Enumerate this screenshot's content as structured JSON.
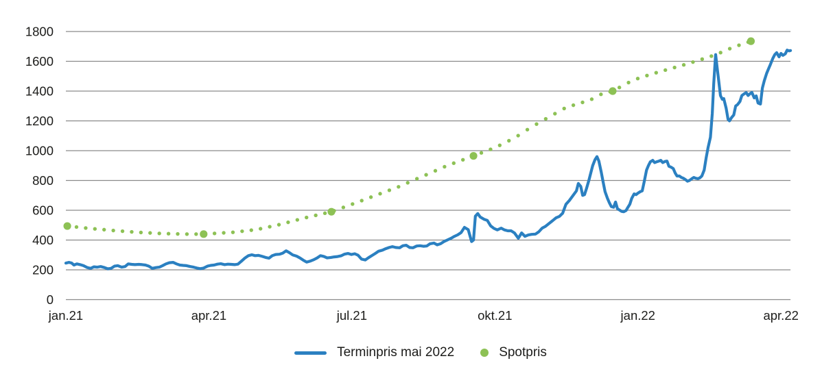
{
  "legend": {
    "terminpris": "Terminpris mai 2022",
    "spotpris": "Spotpris"
  },
  "colors": {
    "terminpris": "#2B80C1",
    "spotpris": "#8DC155",
    "grid": "#8A8A8A",
    "text": "#1C1C1A",
    "background": "#FFFFFF"
  },
  "chart_data": {
    "type": "line",
    "title": "",
    "xlabel": "",
    "ylabel": "",
    "x_axis": {
      "unit": "months_since_jan_2021",
      "tick_labels": [
        "jan.21",
        "apr.21",
        "jul.21",
        "okt.21",
        "jan.22",
        "apr.22"
      ],
      "tick_months": [
        0,
        3,
        6,
        9,
        12,
        15
      ],
      "range": [
        0,
        15.2
      ]
    },
    "y_axis": {
      "min": 0,
      "max": 1800,
      "tick_step": 200,
      "ticks": [
        0,
        200,
        400,
        600,
        800,
        1000,
        1200,
        1400,
        1600,
        1800
      ],
      "grid": true
    },
    "legend_position": "bottom-center",
    "series": [
      {
        "name": "Terminpris mai 2022",
        "style": "solid_line",
        "color": "#2B80C1",
        "points": [
          [
            0.0,
            245
          ],
          [
            0.06,
            250
          ],
          [
            0.12,
            246
          ],
          [
            0.17,
            232
          ],
          [
            0.23,
            240
          ],
          [
            0.3,
            235
          ],
          [
            0.37,
            228
          ],
          [
            0.45,
            215
          ],
          [
            0.52,
            210
          ],
          [
            0.59,
            220
          ],
          [
            0.66,
            218
          ],
          [
            0.73,
            222
          ],
          [
            0.81,
            215
          ],
          [
            0.88,
            207
          ],
          [
            0.95,
            210
          ],
          [
            1.02,
            225
          ],
          [
            1.09,
            228
          ],
          [
            1.17,
            218
          ],
          [
            1.24,
            222
          ],
          [
            1.31,
            240
          ],
          [
            1.38,
            237
          ],
          [
            1.45,
            235
          ],
          [
            1.53,
            237
          ],
          [
            1.6,
            235
          ],
          [
            1.67,
            232
          ],
          [
            1.74,
            225
          ],
          [
            1.81,
            210
          ],
          [
            1.89,
            215
          ],
          [
            1.96,
            218
          ],
          [
            2.03,
            228
          ],
          [
            2.1,
            240
          ],
          [
            2.17,
            248
          ],
          [
            2.25,
            250
          ],
          [
            2.32,
            240
          ],
          [
            2.39,
            232
          ],
          [
            2.46,
            230
          ],
          [
            2.53,
            228
          ],
          [
            2.61,
            222
          ],
          [
            2.68,
            218
          ],
          [
            2.75,
            212
          ],
          [
            2.82,
            208
          ],
          [
            2.89,
            212
          ],
          [
            2.97,
            225
          ],
          [
            3.04,
            230
          ],
          [
            3.11,
            232
          ],
          [
            3.18,
            238
          ],
          [
            3.25,
            241
          ],
          [
            3.33,
            235
          ],
          [
            3.4,
            238
          ],
          [
            3.47,
            237
          ],
          [
            3.54,
            235
          ],
          [
            3.61,
            238
          ],
          [
            3.69,
            260
          ],
          [
            3.76,
            280
          ],
          [
            3.83,
            295
          ],
          [
            3.9,
            301
          ],
          [
            3.97,
            295
          ],
          [
            4.04,
            297
          ],
          [
            4.12,
            290
          ],
          [
            4.19,
            283
          ],
          [
            4.26,
            278
          ],
          [
            4.33,
            295
          ],
          [
            4.4,
            303
          ],
          [
            4.48,
            305
          ],
          [
            4.55,
            312
          ],
          [
            4.62,
            328
          ],
          [
            4.69,
            315
          ],
          [
            4.76,
            300
          ],
          [
            4.84,
            292
          ],
          [
            4.91,
            280
          ],
          [
            4.98,
            265
          ],
          [
            5.05,
            252
          ],
          [
            5.12,
            258
          ],
          [
            5.2,
            268
          ],
          [
            5.27,
            280
          ],
          [
            5.34,
            295
          ],
          [
            5.41,
            290
          ],
          [
            5.48,
            280
          ],
          [
            5.56,
            283
          ],
          [
            5.63,
            287
          ],
          [
            5.7,
            289
          ],
          [
            5.77,
            294
          ],
          [
            5.84,
            305
          ],
          [
            5.92,
            310
          ],
          [
            5.99,
            303
          ],
          [
            6.06,
            308
          ],
          [
            6.13,
            298
          ],
          [
            6.2,
            272
          ],
          [
            6.28,
            266
          ],
          [
            6.35,
            282
          ],
          [
            6.42,
            296
          ],
          [
            6.49,
            310
          ],
          [
            6.56,
            325
          ],
          [
            6.64,
            332
          ],
          [
            6.71,
            342
          ],
          [
            6.78,
            350
          ],
          [
            6.85,
            356
          ],
          [
            6.92,
            350
          ],
          [
            7.0,
            348
          ],
          [
            7.07,
            362
          ],
          [
            7.14,
            365
          ],
          [
            7.21,
            350
          ],
          [
            7.28,
            348
          ],
          [
            7.36,
            360
          ],
          [
            7.43,
            362
          ],
          [
            7.5,
            358
          ],
          [
            7.57,
            360
          ],
          [
            7.64,
            375
          ],
          [
            7.72,
            380
          ],
          [
            7.79,
            368
          ],
          [
            7.86,
            375
          ],
          [
            7.93,
            390
          ],
          [
            8.0,
            400
          ],
          [
            8.08,
            412
          ],
          [
            8.15,
            425
          ],
          [
            8.22,
            435
          ],
          [
            8.29,
            450
          ],
          [
            8.36,
            485
          ],
          [
            8.44,
            470
          ],
          [
            8.51,
            390
          ],
          [
            8.55,
            400
          ],
          [
            8.59,
            560
          ],
          [
            8.64,
            578
          ],
          [
            8.69,
            555
          ],
          [
            8.77,
            540
          ],
          [
            8.84,
            532
          ],
          [
            8.91,
            495
          ],
          [
            8.98,
            478
          ],
          [
            9.05,
            468
          ],
          [
            9.13,
            480
          ],
          [
            9.2,
            468
          ],
          [
            9.27,
            462
          ],
          [
            9.34,
            462
          ],
          [
            9.41,
            448
          ],
          [
            9.49,
            412
          ],
          [
            9.56,
            448
          ],
          [
            9.63,
            425
          ],
          [
            9.7,
            434
          ],
          [
            9.77,
            438
          ],
          [
            9.85,
            440
          ],
          [
            9.92,
            455
          ],
          [
            9.99,
            480
          ],
          [
            10.06,
            492
          ],
          [
            10.13,
            510
          ],
          [
            10.21,
            530
          ],
          [
            10.28,
            549
          ],
          [
            10.35,
            558
          ],
          [
            10.42,
            580
          ],
          [
            10.49,
            640
          ],
          [
            10.56,
            665
          ],
          [
            10.64,
            700
          ],
          [
            10.71,
            730
          ],
          [
            10.75,
            780
          ],
          [
            10.8,
            760
          ],
          [
            10.84,
            700
          ],
          [
            10.88,
            705
          ],
          [
            10.92,
            745
          ],
          [
            10.97,
            800
          ],
          [
            11.01,
            850
          ],
          [
            11.05,
            900
          ],
          [
            11.1,
            940
          ],
          [
            11.14,
            960
          ],
          [
            11.18,
            930
          ],
          [
            11.23,
            855
          ],
          [
            11.27,
            790
          ],
          [
            11.31,
            725
          ],
          [
            11.36,
            680
          ],
          [
            11.4,
            650
          ],
          [
            11.44,
            625
          ],
          [
            11.49,
            620
          ],
          [
            11.53,
            655
          ],
          [
            11.57,
            610
          ],
          [
            11.62,
            600
          ],
          [
            11.66,
            592
          ],
          [
            11.7,
            590
          ],
          [
            11.75,
            598
          ],
          [
            11.79,
            620
          ],
          [
            11.83,
            640
          ],
          [
            11.87,
            680
          ],
          [
            11.92,
            710
          ],
          [
            11.96,
            705
          ],
          [
            12.0,
            715
          ],
          [
            12.05,
            725
          ],
          [
            12.09,
            730
          ],
          [
            12.13,
            790
          ],
          [
            12.18,
            870
          ],
          [
            12.22,
            900
          ],
          [
            12.26,
            925
          ],
          [
            12.31,
            935
          ],
          [
            12.35,
            920
          ],
          [
            12.39,
            925
          ],
          [
            12.44,
            930
          ],
          [
            12.48,
            935
          ],
          [
            12.52,
            920
          ],
          [
            12.57,
            928
          ],
          [
            12.61,
            930
          ],
          [
            12.65,
            895
          ],
          [
            12.69,
            890
          ],
          [
            12.74,
            880
          ],
          [
            12.78,
            850
          ],
          [
            12.82,
            830
          ],
          [
            12.87,
            830
          ],
          [
            12.91,
            820
          ],
          [
            12.95,
            815
          ],
          [
            13.0,
            805
          ],
          [
            13.04,
            795
          ],
          [
            13.08,
            800
          ],
          [
            13.13,
            812
          ],
          [
            13.17,
            820
          ],
          [
            13.21,
            815
          ],
          [
            13.26,
            812
          ],
          [
            13.3,
            818
          ],
          [
            13.34,
            830
          ],
          [
            13.39,
            870
          ],
          [
            13.43,
            950
          ],
          [
            13.47,
            1020
          ],
          [
            13.52,
            1090
          ],
          [
            13.56,
            1250
          ],
          [
            13.59,
            1450
          ],
          [
            13.62,
            1600
          ],
          [
            13.63,
            1645
          ],
          [
            13.66,
            1560
          ],
          [
            13.69,
            1480
          ],
          [
            13.73,
            1370
          ],
          [
            13.77,
            1345
          ],
          [
            13.8,
            1350
          ],
          [
            13.85,
            1285
          ],
          [
            13.89,
            1210
          ],
          [
            13.92,
            1200
          ],
          [
            13.96,
            1220
          ],
          [
            14.01,
            1240
          ],
          [
            14.05,
            1300
          ],
          [
            14.09,
            1310
          ],
          [
            14.14,
            1330
          ],
          [
            14.18,
            1370
          ],
          [
            14.22,
            1380
          ],
          [
            14.27,
            1390
          ],
          [
            14.31,
            1370
          ],
          [
            14.35,
            1382
          ],
          [
            14.39,
            1391
          ],
          [
            14.44,
            1354
          ],
          [
            14.48,
            1368
          ],
          [
            14.52,
            1320
          ],
          [
            14.57,
            1313
          ],
          [
            14.61,
            1420
          ],
          [
            14.65,
            1470
          ],
          [
            14.7,
            1520
          ],
          [
            14.74,
            1550
          ],
          [
            14.78,
            1580
          ],
          [
            14.83,
            1620
          ],
          [
            14.87,
            1645
          ],
          [
            14.91,
            1658
          ],
          [
            14.96,
            1630
          ],
          [
            15.0,
            1653
          ],
          [
            15.04,
            1640
          ],
          [
            15.09,
            1650
          ],
          [
            15.13,
            1675
          ],
          [
            15.17,
            1670
          ],
          [
            15.2,
            1672
          ]
        ]
      },
      {
        "name": "Spotpris",
        "style": "dotted_curve",
        "color": "#8DC155",
        "dot_interval_months": 0.193,
        "anchor_points": [
          [
            0.03,
            494
          ],
          [
            0.5,
            478
          ],
          [
            1.0,
            464
          ],
          [
            1.5,
            452
          ],
          [
            2.0,
            444
          ],
          [
            2.5,
            440
          ],
          [
            2.89,
            440
          ],
          [
            3.5,
            452
          ],
          [
            4.0,
            470
          ],
          [
            4.5,
            505
          ],
          [
            5.0,
            548
          ],
          [
            5.57,
            590
          ],
          [
            6.0,
            640
          ],
          [
            6.5,
            700
          ],
          [
            7.0,
            760
          ],
          [
            7.28,
            800
          ],
          [
            7.5,
            830
          ],
          [
            8.0,
            900
          ],
          [
            8.55,
            965
          ],
          [
            9.0,
            1020
          ],
          [
            9.41,
            1085
          ],
          [
            9.77,
            1160
          ],
          [
            10.13,
            1225
          ],
          [
            10.49,
            1290
          ],
          [
            11.0,
            1340
          ],
          [
            11.21,
            1377
          ],
          [
            11.47,
            1400
          ],
          [
            11.9,
            1474
          ],
          [
            12.29,
            1515
          ],
          [
            13.05,
            1584
          ],
          [
            13.63,
            1644
          ],
          [
            14.0,
            1695
          ],
          [
            14.37,
            1735
          ]
        ],
        "big_dots": [
          [
            0.03,
            494
          ],
          [
            2.89,
            440
          ],
          [
            5.57,
            590
          ],
          [
            8.55,
            965
          ],
          [
            11.47,
            1400
          ],
          [
            14.37,
            1735
          ]
        ]
      }
    ]
  }
}
